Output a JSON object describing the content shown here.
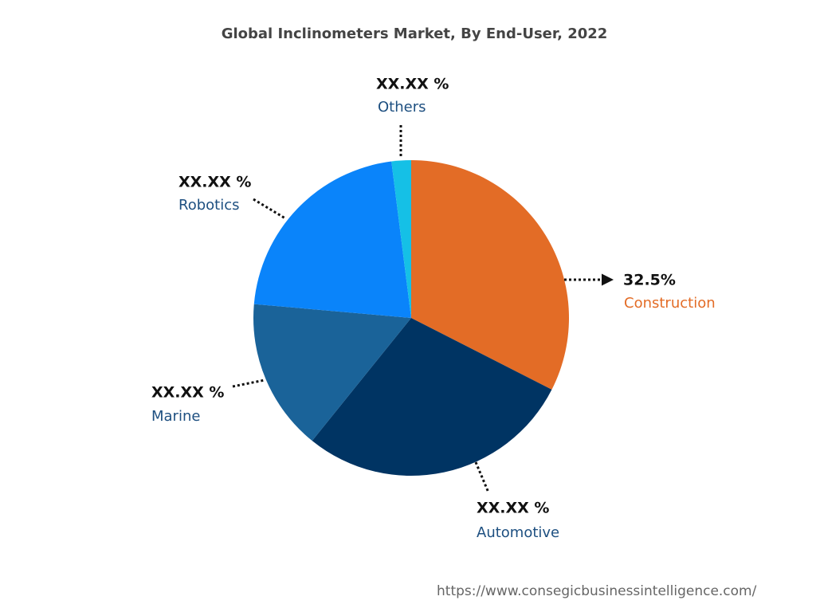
{
  "chart_data": {
    "type": "pie",
    "title": "Global Inclinometers Market, By End-User, 2022",
    "categories": [
      "Construction",
      "Automotive",
      "Marine",
      "Robotics",
      "Others"
    ],
    "values": [
      32.5,
      28.3,
      15.6,
      21.6,
      2.0
    ],
    "value_labels": [
      "32.5%",
      "XX.XX %",
      "XX.XX %",
      "XX.XX %",
      "XX.XX %"
    ],
    "colors": [
      "#e36c26",
      "#003463",
      "#1a6399",
      "#0a84fa",
      "#15c0e6"
    ],
    "source": "https://www.consegicbusinessintelligence.com/"
  }
}
